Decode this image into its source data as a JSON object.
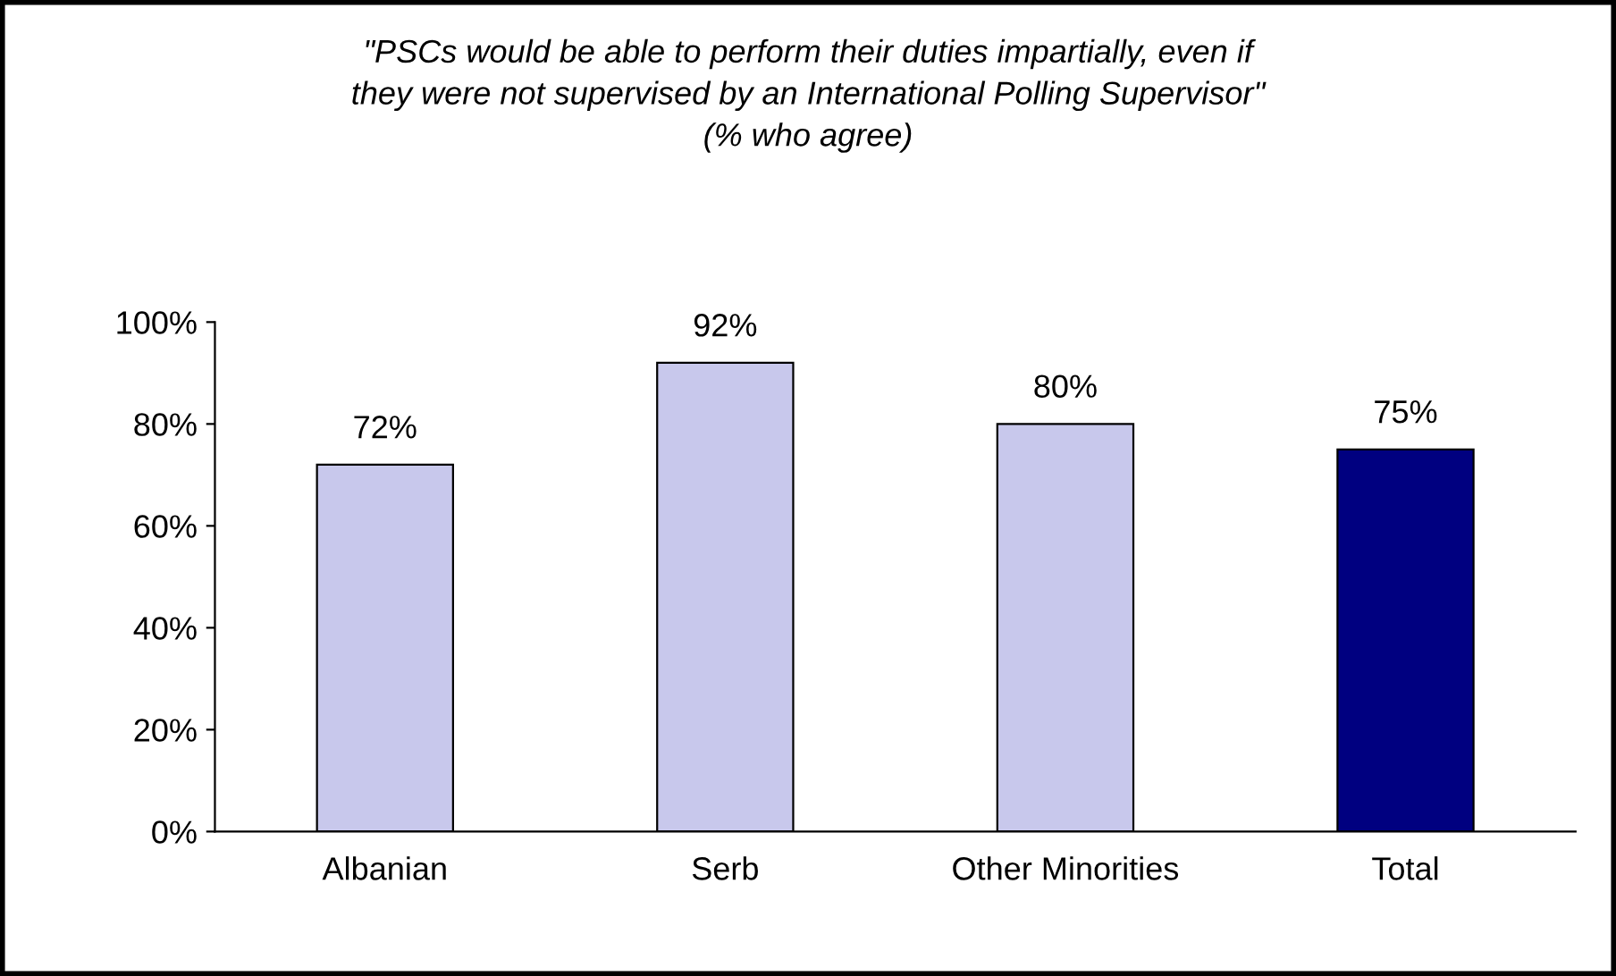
{
  "chart_data": {
    "type": "bar",
    "title": "\"PSCs would be able to perform their duties impartially, even if\nthey were not supervised by an International Polling Supervisor\"\n(% who agree)",
    "categories": [
      "Albanian",
      "Serb",
      "Other Minorities",
      "Total"
    ],
    "values": [
      72,
      92,
      80,
      75
    ],
    "colors": [
      "#c8c8ec",
      "#c8c8ec",
      "#c8c8ec",
      "#000080"
    ],
    "value_labels": [
      "72%",
      "92%",
      "80%",
      "75%"
    ],
    "ylim": [
      0,
      100
    ],
    "yticks": [
      {
        "value": 0,
        "label": "0%"
      },
      {
        "value": 20,
        "label": "20%"
      },
      {
        "value": 40,
        "label": "40%"
      },
      {
        "value": 60,
        "label": "60%"
      },
      {
        "value": 80,
        "label": "80%"
      },
      {
        "value": 100,
        "label": "100%"
      }
    ],
    "grid": false
  }
}
